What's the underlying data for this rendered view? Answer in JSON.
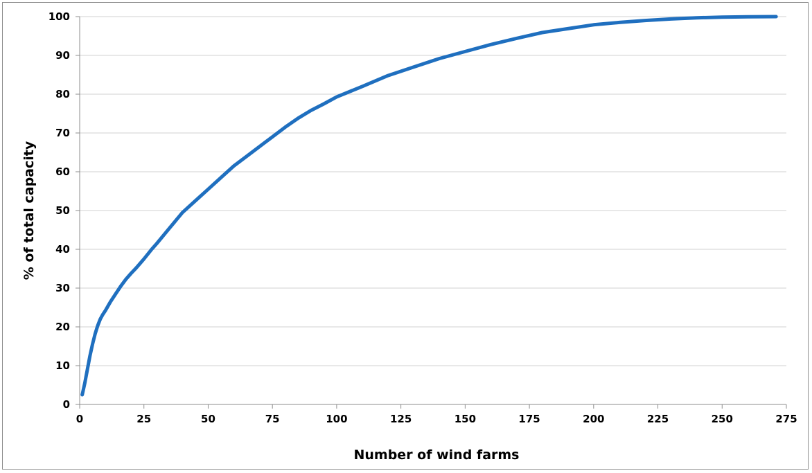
{
  "chart_data": {
    "type": "line",
    "title": "",
    "xlabel": "Number of wind farms",
    "ylabel": "% of total capacity",
    "xlim": [
      0,
      275
    ],
    "ylim": [
      0,
      100
    ],
    "x_ticks": [
      0,
      25,
      50,
      75,
      100,
      125,
      150,
      175,
      200,
      225,
      250,
      275
    ],
    "y_ticks": [
      0,
      10,
      20,
      30,
      40,
      50,
      60,
      70,
      80,
      90,
      100
    ],
    "grid": "horizontal",
    "legend": "none",
    "series": [
      {
        "color": "#1f6fbf",
        "x": [
          1,
          2,
          3,
          4,
          5,
          6,
          7,
          8,
          9,
          10,
          12,
          14,
          16,
          18,
          20,
          22,
          25,
          28,
          30,
          35,
          40,
          45,
          50,
          55,
          60,
          65,
          70,
          75,
          80,
          85,
          90,
          95,
          100,
          110,
          120,
          130,
          140,
          150,
          160,
          170,
          180,
          190,
          200,
          210,
          220,
          230,
          240,
          250,
          260,
          271
        ],
        "y": [
          2.5,
          5.5,
          9,
          12.5,
          15.5,
          18.2,
          20.3,
          22,
          23.2,
          24.2,
          26.5,
          28.5,
          30.5,
          32.3,
          33.8,
          35.2,
          37.5,
          40,
          41.5,
          45.5,
          49.5,
          52.5,
          55.5,
          58.5,
          61.5,
          64,
          66.5,
          69,
          71.5,
          73.8,
          75.8,
          77.5,
          79.3,
          82,
          84.8,
          87,
          89.2,
          91,
          92.8,
          94.4,
          95.9,
          96.9,
          97.9,
          98.5,
          99.0,
          99.4,
          99.7,
          99.85,
          99.95,
          100
        ]
      }
    ]
  }
}
